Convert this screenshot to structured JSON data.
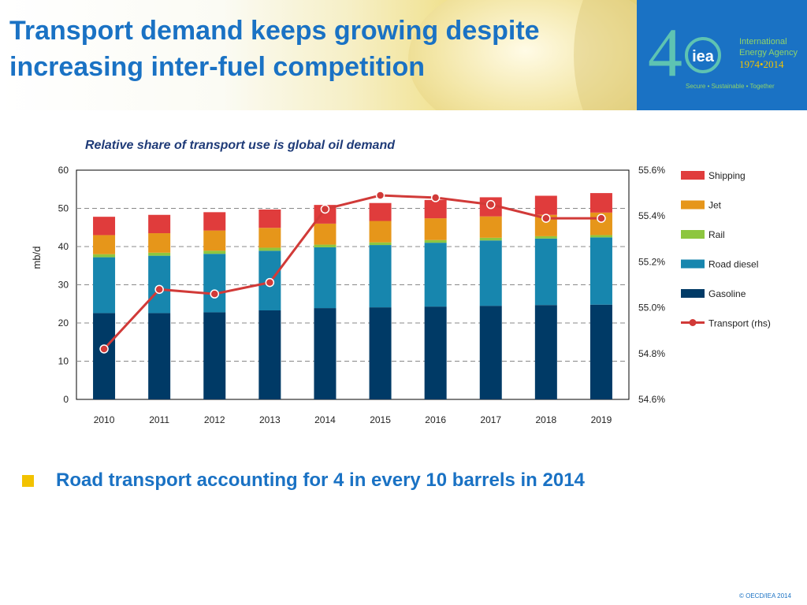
{
  "slide": {
    "title_line1": "Transport demand keeps growing despite",
    "title_line2": "increasing inter-fuel competition",
    "bullet": "Road transport accounting for 4 in every 10 barrels in 2014",
    "footer": "© OECD/IEA 2014"
  },
  "logo": {
    "number_4": "4",
    "badge": "iea",
    "org_line1": "International",
    "org_line2": "Energy Agency",
    "years": "1974•2014",
    "tagline": "Secure • Sustainable • Together"
  },
  "colors": {
    "brand_blue": "#1a72c4",
    "gasoline": "#003a66",
    "road_diesel": "#1786ae",
    "rail": "#8dc63f",
    "jet": "#e6961a",
    "shipping": "#e03c3c",
    "transport_line": "#d13a38"
  },
  "chart_data": {
    "type": "bar",
    "stacked": true,
    "title": "Relative share of transport use is global oil demand",
    "ylabel": "mb/d",
    "ylim": [
      0,
      60
    ],
    "yticks": [
      0,
      10,
      20,
      30,
      40,
      50,
      60
    ],
    "y2lim": [
      54.6,
      55.6
    ],
    "y2ticks": [
      "54.6%",
      "54.8%",
      "55.0%",
      "55.2%",
      "55.4%",
      "55.6%"
    ],
    "y2tick_values": [
      54.6,
      54.8,
      55.0,
      55.2,
      55.4,
      55.6
    ],
    "categories": [
      "2010",
      "2011",
      "2012",
      "2013",
      "2014",
      "2015",
      "2016",
      "2017",
      "2018",
      "2019"
    ],
    "grid": true,
    "legend": "right",
    "series": [
      {
        "name": "Gasoline",
        "color": "#003a66",
        "values": [
          22.6,
          22.6,
          22.8,
          23.3,
          23.9,
          24.1,
          24.3,
          24.5,
          24.7,
          24.8
        ]
      },
      {
        "name": "Road diesel",
        "color": "#1786ae",
        "values": [
          14.6,
          15.0,
          15.3,
          15.6,
          15.9,
          16.3,
          16.7,
          17.1,
          17.4,
          17.6
        ]
      },
      {
        "name": "Rail",
        "color": "#8dc63f",
        "values": [
          0.8,
          0.8,
          0.8,
          0.8,
          0.7,
          0.7,
          0.7,
          0.7,
          0.6,
          0.6
        ]
      },
      {
        "name": "Jet",
        "color": "#e6961a",
        "values": [
          5.0,
          5.1,
          5.3,
          5.2,
          5.5,
          5.6,
          5.7,
          5.6,
          5.6,
          5.9
        ]
      },
      {
        "name": "Shipping",
        "color": "#e03c3c",
        "values": [
          4.8,
          4.8,
          4.8,
          4.8,
          4.9,
          4.7,
          4.8,
          5.0,
          5.0,
          5.1
        ]
      }
    ],
    "line_series": {
      "name": "Transport (rhs)",
      "axis": "rhs",
      "color": "#d13a38",
      "values": [
        54.82,
        55.08,
        55.06,
        55.11,
        55.43,
        55.49,
        55.48,
        55.45,
        55.39,
        55.39
      ]
    }
  }
}
